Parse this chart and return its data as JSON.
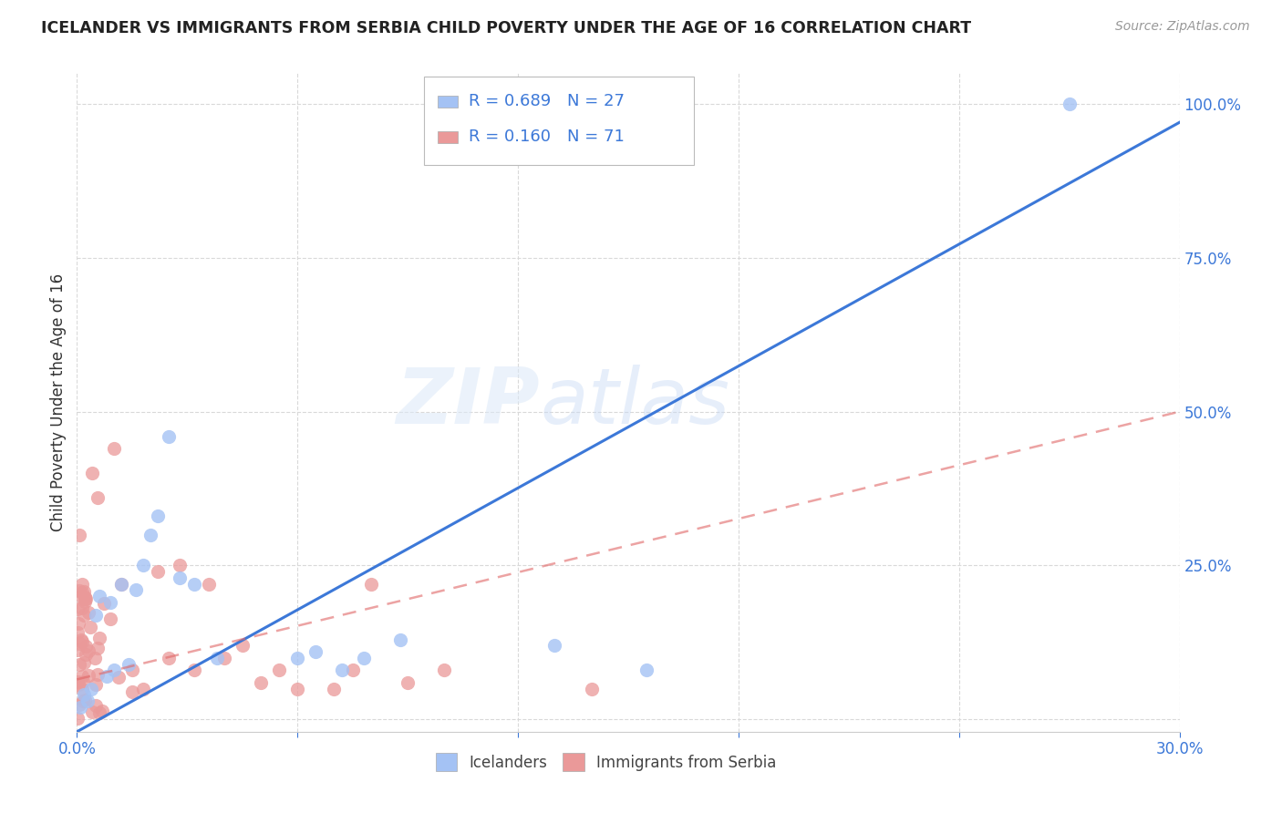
{
  "title": "ICELANDER VS IMMIGRANTS FROM SERBIA CHILD POVERTY UNDER THE AGE OF 16 CORRELATION CHART",
  "source": "Source: ZipAtlas.com",
  "ylabel": "Child Poverty Under the Age of 16",
  "xlim": [
    0.0,
    0.3
  ],
  "ylim": [
    -0.02,
    1.05
  ],
  "x_ticks": [
    0.0,
    0.06,
    0.12,
    0.18,
    0.24,
    0.3
  ],
  "x_tick_labels": [
    "0.0%",
    "",
    "",
    "",
    "",
    "30.0%"
  ],
  "y_ticks": [
    0.0,
    0.25,
    0.5,
    0.75,
    1.0
  ],
  "y_tick_labels": [
    "",
    "25.0%",
    "50.0%",
    "75.0%",
    "100.0%"
  ],
  "icelander_color": "#a4c2f4",
  "serbia_color": "#ea9999",
  "icelander_line_color": "#3c78d8",
  "serbia_line_color": "#e06666",
  "legend_R_icelander": "R = 0.689",
  "legend_N_icelander": "N = 27",
  "legend_R_serbia": "R = 0.160",
  "legend_N_serbia": "N = 71",
  "watermark_zip": "ZIP",
  "watermark_atlas": "atlas",
  "background_color": "#ffffff",
  "grid_color": "#d9d9d9",
  "ice_line_x0": 0.0,
  "ice_line_y0": -0.02,
  "ice_line_x1": 0.3,
  "ice_line_y1": 0.97,
  "srb_line_x0": 0.0,
  "srb_line_y0": 0.065,
  "srb_line_x1": 0.3,
  "srb_line_y1": 0.5
}
